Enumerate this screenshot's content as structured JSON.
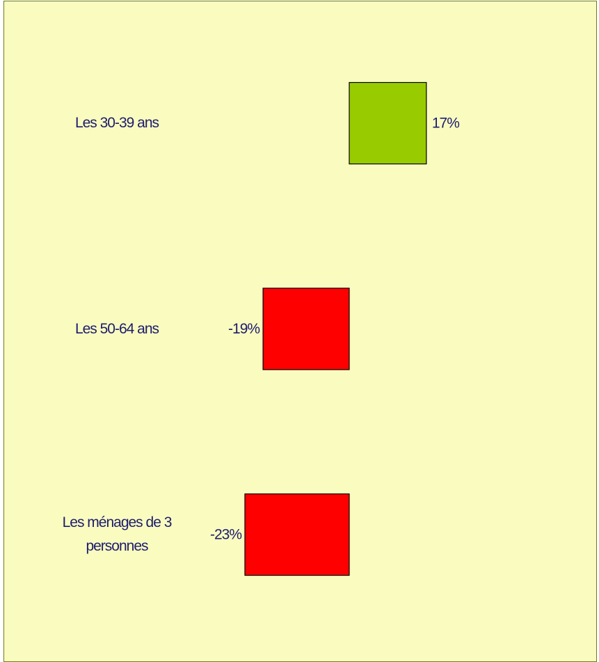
{
  "chart_data": {
    "type": "bar",
    "orientation": "horizontal",
    "categories": [
      "Les 30-39 ans",
      "Les 50-64 ans",
      "Les ménages de 3 personnes"
    ],
    "values": [
      17,
      -19,
      -23
    ],
    "value_labels": [
      "17%",
      "-19%",
      "-23%"
    ],
    "colors": [
      "#99cc00",
      "#ff0000",
      "#ff0000"
    ]
  }
}
